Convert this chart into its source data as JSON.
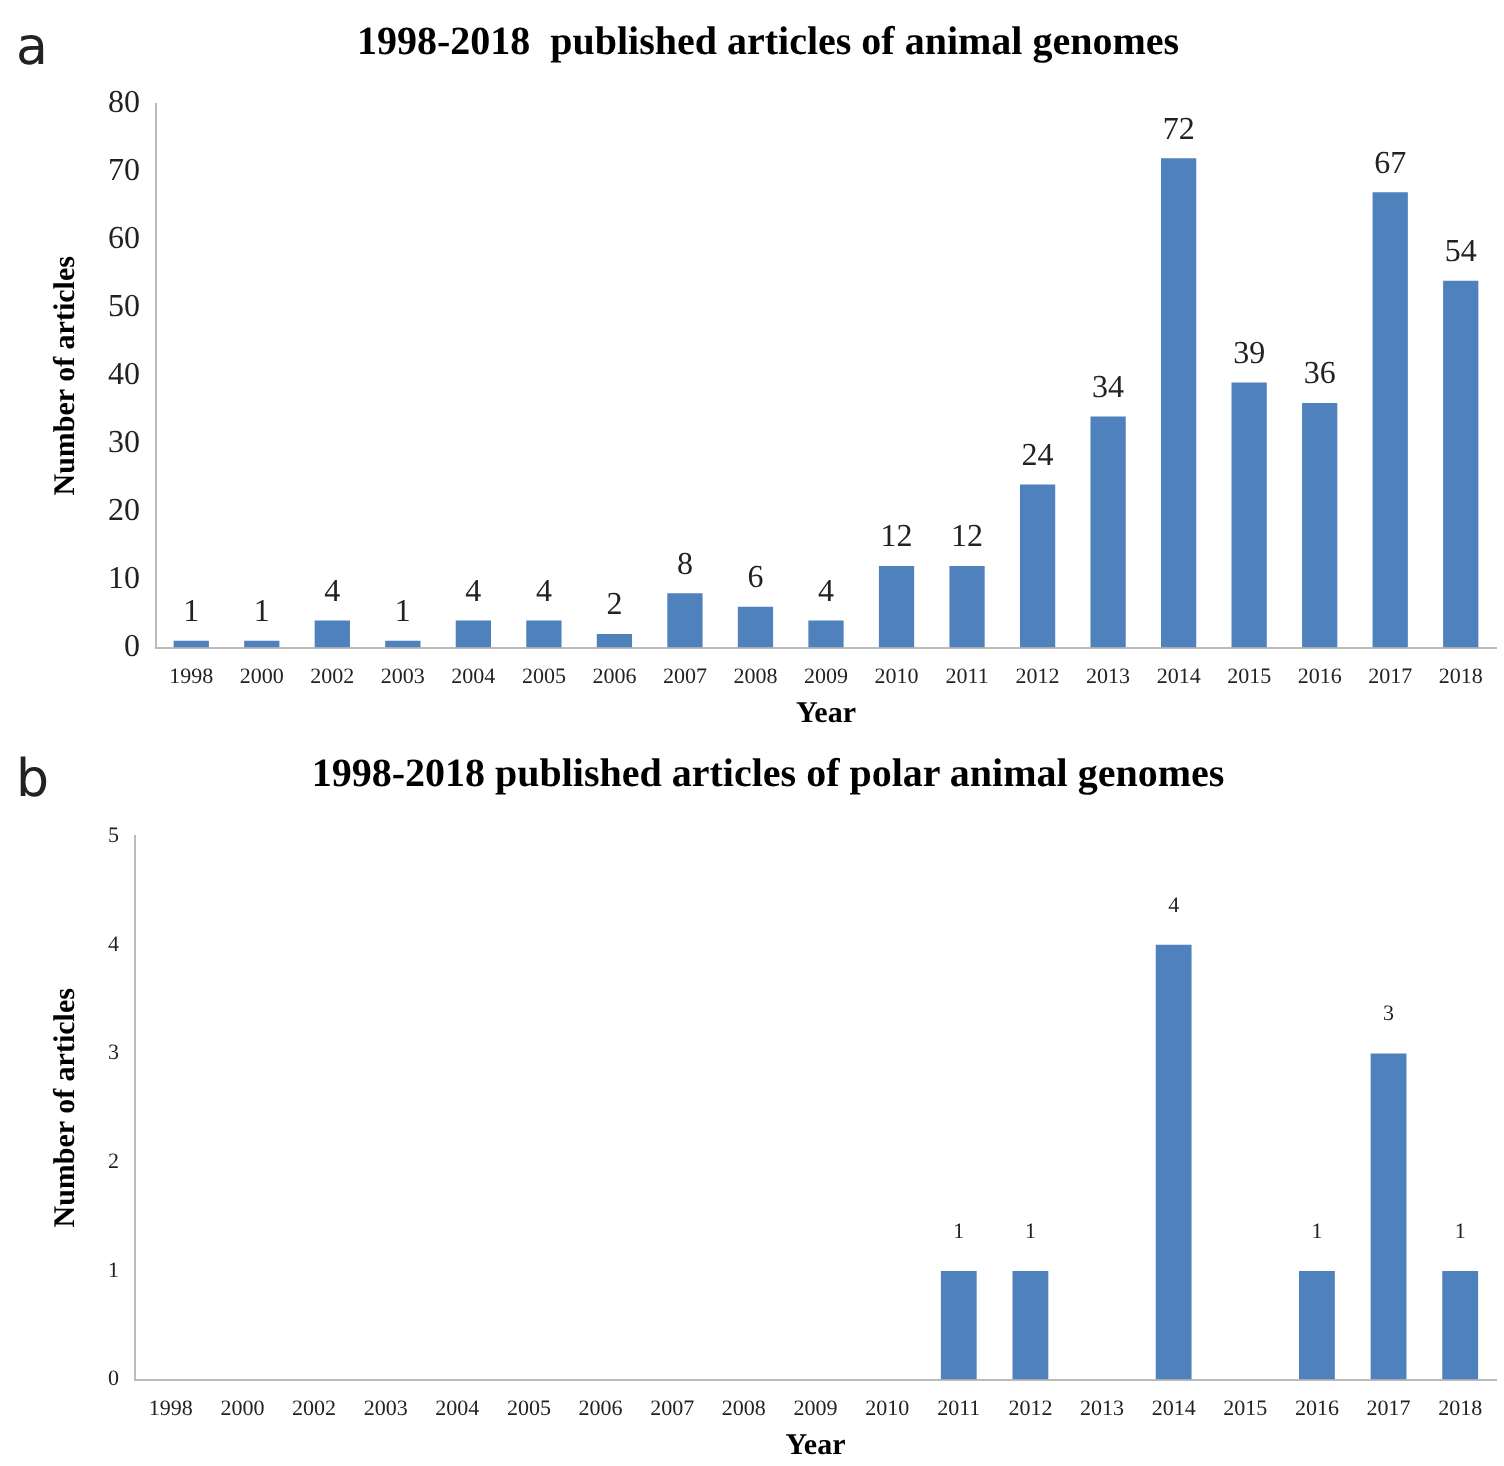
{
  "chart_data": [
    {
      "type": "bar",
      "title": "1998-2018  published articles of animal genomes",
      "xlabel": "Year",
      "ylabel": "Number of articles",
      "annotations": [
        "a"
      ],
      "categories": [
        "1998",
        "2000",
        "2002",
        "2003",
        "2004",
        "2005",
        "2006",
        "2007",
        "2008",
        "2009",
        "2010",
        "2011",
        "2012",
        "2013",
        "2014",
        "2015",
        "2016",
        "2017",
        "2018"
      ],
      "values": [
        1,
        1,
        4,
        1,
        4,
        4,
        2,
        8,
        6,
        4,
        12,
        12,
        24,
        34,
        72,
        39,
        36,
        67,
        54
      ],
      "color": "#4f81bd",
      "ylim": [
        0,
        80
      ],
      "yticks": [
        0,
        10,
        20,
        30,
        40,
        50,
        60,
        70,
        80
      ],
      "grid": false,
      "legend": false,
      "data_labels": true
    },
    {
      "type": "bar",
      "title": "1998-2018 published articles of polar animal genomes",
      "xlabel": "Year",
      "ylabel": "Number of articles",
      "annotations": [
        "b"
      ],
      "categories": [
        "1998",
        "2000",
        "2002",
        "2003",
        "2004",
        "2005",
        "2006",
        "2007",
        "2008",
        "2009",
        "2010",
        "2011",
        "2012",
        "2013",
        "2014",
        "2015",
        "2016",
        "2017",
        "2018"
      ],
      "values": [
        0,
        0,
        0,
        0,
        0,
        0,
        0,
        0,
        0,
        0,
        0,
        1,
        1,
        0,
        4,
        0,
        1,
        3,
        1
      ],
      "value_labels": [
        null,
        null,
        null,
        null,
        null,
        null,
        null,
        null,
        null,
        null,
        null,
        "1",
        "1",
        null,
        "4",
        null,
        "1",
        "3",
        "1"
      ],
      "color": "#4f81bd",
      "ylim": [
        0,
        5
      ],
      "yticks": [
        0,
        1,
        2,
        3,
        4,
        5
      ],
      "grid": false,
      "legend": false
    }
  ]
}
